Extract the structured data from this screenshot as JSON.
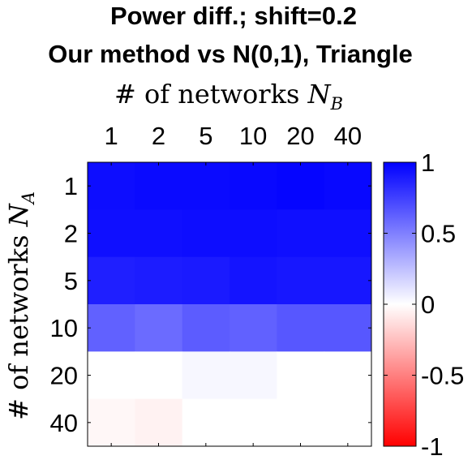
{
  "chart_data": {
    "type": "heatmap",
    "title_lines": [
      "Power diff.; shift=0.2",
      "Our method vs N(0,1), Triangle"
    ],
    "xlabel": {
      "prefix": "# of networks ",
      "symbol": "N",
      "subscript": "B"
    },
    "ylabel": {
      "prefix": "# of networks ",
      "symbol": "N",
      "subscript": "A"
    },
    "x_categories": [
      "1",
      "2",
      "5",
      "10",
      "20",
      "40"
    ],
    "y_categories": [
      "1",
      "2",
      "5",
      "10",
      "20",
      "40"
    ],
    "values": [
      [
        0.95,
        0.96,
        0.96,
        0.97,
        0.98,
        0.97
      ],
      [
        0.94,
        0.94,
        0.95,
        0.95,
        0.94,
        0.94
      ],
      [
        0.88,
        0.89,
        0.9,
        0.92,
        0.91,
        0.91
      ],
      [
        0.62,
        0.58,
        0.64,
        0.62,
        0.66,
        0.66
      ],
      [
        0.0,
        0.0,
        0.03,
        0.03,
        0.0,
        0.0
      ],
      [
        -0.03,
        -0.05,
        0.0,
        0.0,
        0.0,
        0.0
      ]
    ],
    "colorbar": {
      "range": [
        -1,
        1
      ],
      "ticks": [
        1,
        0.5,
        0,
        -0.5,
        -1
      ],
      "tick_labels": [
        "1",
        "0.5",
        "0",
        "-0.5",
        "-1"
      ],
      "colors": {
        "low": "#ff0000",
        "mid": "#ffffff",
        "high": "#0000ff"
      }
    }
  }
}
